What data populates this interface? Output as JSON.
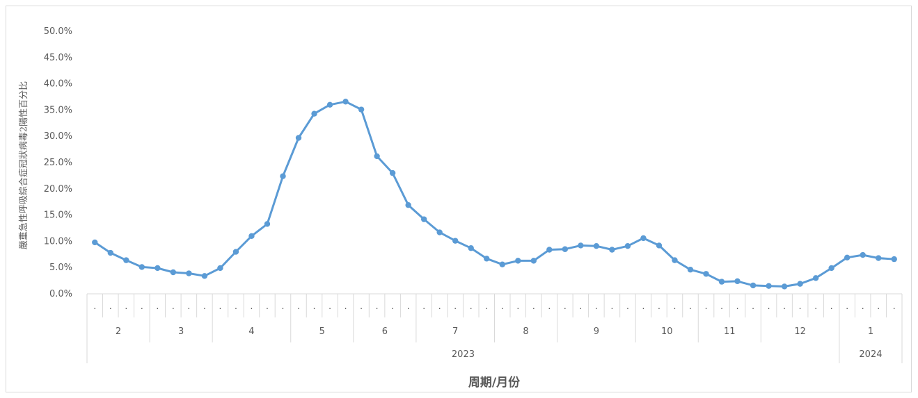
{
  "chart_data": {
    "type": "line",
    "title": "",
    "xlabel": "周期/月份",
    "ylabel": "嚴重急性呼吸綜合症冠狀病毒2陽性百分比",
    "ylim": [
      0,
      50
    ],
    "yticks": [
      "0.0%",
      "5.0%",
      "10.0%",
      "15.0%",
      "20.0%",
      "25.0%",
      "30.0%",
      "35.0%",
      "40.0%",
      "45.0%",
      "50.0%"
    ],
    "grid": false,
    "legend": "none",
    "line_color": "#5b9bd5",
    "months": [
      {
        "label": "2",
        "weeks": 4
      },
      {
        "label": "3",
        "weeks": 4
      },
      {
        "label": "4",
        "weeks": 5
      },
      {
        "label": "5",
        "weeks": 4
      },
      {
        "label": "6",
        "weeks": 4
      },
      {
        "label": "7",
        "weeks": 5
      },
      {
        "label": "8",
        "weeks": 4
      },
      {
        "label": "9",
        "weeks": 5
      },
      {
        "label": "10",
        "weeks": 4
      },
      {
        "label": "11",
        "weeks": 4
      },
      {
        "label": "12",
        "weeks": 5
      },
      {
        "label": "1",
        "weeks": 4
      }
    ],
    "years": [
      {
        "label": "2023",
        "months": 11
      },
      {
        "label": "2024",
        "months": 1
      }
    ],
    "week_marker": "·",
    "series": [
      {
        "values": [
          9.8,
          7.8,
          6.4,
          5.1,
          4.9,
          4.1,
          3.9,
          3.4,
          4.9,
          8.0,
          11.0,
          13.3,
          22.4,
          29.7,
          34.3,
          36.0,
          36.6,
          35.1,
          26.2,
          23.0,
          16.9,
          14.2,
          11.7,
          10.1,
          8.7,
          6.7,
          5.6,
          6.3,
          6.3,
          8.4,
          8.5,
          9.2,
          9.1,
          8.4,
          9.1,
          10.6,
          9.2,
          6.4,
          4.6,
          3.8,
          2.3,
          2.4,
          1.6,
          1.5,
          1.4,
          1.9,
          3.0,
          4.9,
          6.9,
          7.4,
          6.8,
          6.6
        ]
      }
    ]
  }
}
